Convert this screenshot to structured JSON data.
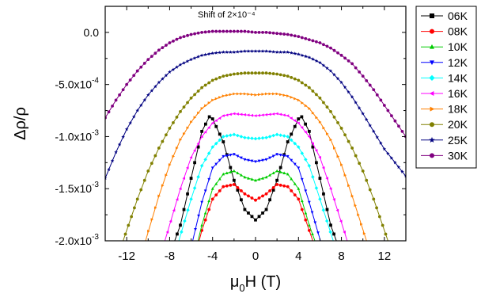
{
  "chart_data": {
    "type": "line",
    "annotation": "Shift of 2×10⁻⁴",
    "xlabel": {
      "base": "μ",
      "sub": "0",
      "rest": "H (T)"
    },
    "ylabel": "Δρ/ρ",
    "xlim": [
      -14,
      14
    ],
    "ylim": [
      -0.002,
      0.00025
    ],
    "x_ticks": [
      -12,
      -8,
      -4,
      0,
      4,
      8,
      12
    ],
    "x_tick_labels": [
      "-12",
      "-8",
      "-4",
      "0",
      "4",
      "8",
      "12"
    ],
    "y_ticks": [
      0,
      -0.0005,
      -0.001,
      -0.0015,
      -0.002
    ],
    "y_tick_labels": [
      {
        "mant": "0.0",
        "exp": ""
      },
      {
        "mant": "-5.0x10",
        "exp": "-4"
      },
      {
        "mant": "-1.0x10",
        "exp": "-3"
      },
      {
        "mant": "-1.5x10",
        "exp": "-3"
      },
      {
        "mant": "-2.0x10",
        "exp": "-3"
      }
    ],
    "legend_position": "outside-right",
    "series": [
      {
        "name": "06K",
        "color": "#000000",
        "marker": "square",
        "points": [
          [
            -7.6,
            -0.00202
          ],
          [
            -7,
            -0.00185
          ],
          [
            -6,
            -0.0014
          ],
          [
            -5,
            -0.00095
          ],
          [
            -4.3,
            -0.00081
          ],
          [
            -4,
            -0.00083
          ],
          [
            -3,
            -0.00105
          ],
          [
            -2,
            -0.00142
          ],
          [
            -1,
            -0.0017
          ],
          [
            0,
            -0.0018
          ],
          [
            1,
            -0.0017
          ],
          [
            2,
            -0.00142
          ],
          [
            3,
            -0.00105
          ],
          [
            4,
            -0.00083
          ],
          [
            4.3,
            -0.00081
          ],
          [
            5,
            -0.00095
          ],
          [
            6,
            -0.0014
          ],
          [
            7,
            -0.00185
          ],
          [
            7.6,
            -0.00202
          ]
        ]
      },
      {
        "name": "08K",
        "color": "#ff0000",
        "marker": "circle",
        "points": [
          [
            -5.3,
            -0.00202
          ],
          [
            -5,
            -0.0019
          ],
          [
            -4,
            -0.0016
          ],
          [
            -3,
            -0.00148
          ],
          [
            -2,
            -0.00146
          ],
          [
            -1,
            -0.00155
          ],
          [
            0,
            -0.00161
          ],
          [
            1,
            -0.00155
          ],
          [
            2,
            -0.00146
          ],
          [
            3,
            -0.00148
          ],
          [
            4,
            -0.0016
          ],
          [
            5,
            -0.0019
          ],
          [
            5.4,
            -0.00202
          ]
        ]
      },
      {
        "name": "10K",
        "color": "#00cc00",
        "marker": "triangle-up",
        "points": [
          [
            -5.4,
            -0.00202
          ],
          [
            -5,
            -0.00185
          ],
          [
            -4,
            -0.0015
          ],
          [
            -3,
            -0.00136
          ],
          [
            -2,
            -0.00133
          ],
          [
            -1,
            -0.00139
          ],
          [
            0,
            -0.00142
          ],
          [
            1,
            -0.00139
          ],
          [
            2,
            -0.00133
          ],
          [
            3,
            -0.00136
          ],
          [
            4,
            -0.0015
          ],
          [
            5,
            -0.00185
          ],
          [
            5.6,
            -0.00202
          ]
        ]
      },
      {
        "name": "12K",
        "color": "#0000ff",
        "marker": "triangle-down",
        "points": [
          [
            -5.9,
            -0.00202
          ],
          [
            -5,
            -0.00163
          ],
          [
            -4,
            -0.0013
          ],
          [
            -3,
            -0.00119
          ],
          [
            -2,
            -0.00117
          ],
          [
            -1,
            -0.00122
          ],
          [
            0,
            -0.00124
          ],
          [
            1,
            -0.00122
          ],
          [
            2,
            -0.00117
          ],
          [
            3,
            -0.00119
          ],
          [
            4,
            -0.0013
          ],
          [
            5,
            -0.00163
          ],
          [
            6.1,
            -0.00202
          ]
        ]
      },
      {
        "name": "14K",
        "color": "#00ffff",
        "marker": "diamond",
        "points": [
          [
            -7.2,
            -0.00202
          ],
          [
            -6,
            -0.0016
          ],
          [
            -5,
            -0.00128
          ],
          [
            -4,
            -0.0011
          ],
          [
            -3,
            -0.001
          ],
          [
            -2,
            -0.00098
          ],
          [
            -1,
            -0.00101
          ],
          [
            0,
            -0.00102
          ],
          [
            1,
            -0.00101
          ],
          [
            2,
            -0.00098
          ],
          [
            3,
            -0.001
          ],
          [
            4,
            -0.0011
          ],
          [
            5,
            -0.00128
          ],
          [
            6,
            -0.0016
          ],
          [
            7.3,
            -0.00202
          ]
        ]
      },
      {
        "name": "16K",
        "color": "#ff00ff",
        "marker": "triangle-left",
        "points": [
          [
            -8.5,
            -0.00202
          ],
          [
            -7,
            -0.0015
          ],
          [
            -6,
            -0.0012
          ],
          [
            -5,
            -0.001
          ],
          [
            -4,
            -0.00087
          ],
          [
            -3,
            -0.0008
          ],
          [
            -2,
            -0.00078
          ],
          [
            -1,
            -0.00079
          ],
          [
            0,
            -0.0008
          ],
          [
            1,
            -0.00079
          ],
          [
            2,
            -0.00078
          ],
          [
            3,
            -0.0008
          ],
          [
            4,
            -0.00087
          ],
          [
            5,
            -0.001
          ],
          [
            6,
            -0.0012
          ],
          [
            7,
            -0.0015
          ],
          [
            8.6,
            -0.00202
          ]
        ]
      },
      {
        "name": "18K",
        "color": "#ff8000",
        "marker": "triangle-right",
        "points": [
          [
            -10.3,
            -0.00202
          ],
          [
            -9,
            -0.00157
          ],
          [
            -8,
            -0.00127
          ],
          [
            -7,
            -0.00103
          ],
          [
            -6,
            -0.00086
          ],
          [
            -5,
            -0.00073
          ],
          [
            -4,
            -0.00065
          ],
          [
            -3,
            -0.00061
          ],
          [
            -2,
            -0.00059
          ],
          [
            -1,
            -0.00059
          ],
          [
            0,
            -0.0006
          ],
          [
            1,
            -0.00059
          ],
          [
            2,
            -0.00059
          ],
          [
            3,
            -0.00061
          ],
          [
            4,
            -0.00065
          ],
          [
            5,
            -0.00073
          ],
          [
            6,
            -0.00086
          ],
          [
            7,
            -0.00103
          ],
          [
            8,
            -0.00127
          ],
          [
            9,
            -0.00157
          ],
          [
            10.4,
            -0.00202
          ]
        ]
      },
      {
        "name": "20K",
        "color": "#808000",
        "marker": "circle",
        "points": [
          [
            -12.4,
            -0.00202
          ],
          [
            -11,
            -0.0016
          ],
          [
            -10,
            -0.00133
          ],
          [
            -9,
            -0.00111
          ],
          [
            -8,
            -0.00092
          ],
          [
            -7,
            -0.00076
          ],
          [
            -6,
            -0.00063
          ],
          [
            -5,
            -0.00053
          ],
          [
            -4,
            -0.00046
          ],
          [
            -3,
            -0.00042
          ],
          [
            -2,
            -0.0004
          ],
          [
            -1,
            -0.00039
          ],
          [
            0,
            -0.00039
          ],
          [
            1,
            -0.00039
          ],
          [
            2,
            -0.0004
          ],
          [
            3,
            -0.00042
          ],
          [
            4,
            -0.00046
          ],
          [
            5,
            -0.00053
          ],
          [
            6,
            -0.00063
          ],
          [
            7,
            -0.00076
          ],
          [
            8,
            -0.00092
          ],
          [
            9,
            -0.00111
          ],
          [
            10,
            -0.00133
          ],
          [
            11,
            -0.0016
          ],
          [
            12.4,
            -0.00202
          ]
        ]
      },
      {
        "name": "25K",
        "color": "#000080",
        "marker": "star",
        "points": [
          [
            -14,
            -0.0014
          ],
          [
            -13,
            -0.00115
          ],
          [
            -12,
            -0.00093
          ],
          [
            -11,
            -0.00075
          ],
          [
            -10,
            -0.0006
          ],
          [
            -9,
            -0.00048
          ],
          [
            -8,
            -0.00038
          ],
          [
            -7,
            -0.00031
          ],
          [
            -6,
            -0.00026
          ],
          [
            -5,
            -0.00022
          ],
          [
            -4,
            -0.0002
          ],
          [
            -3,
            -0.00019
          ],
          [
            -2,
            -0.00019
          ],
          [
            -1,
            -0.00018
          ],
          [
            0,
            -0.00018
          ],
          [
            1,
            -0.00018
          ],
          [
            2,
            -0.00019
          ],
          [
            3,
            -0.00019
          ],
          [
            4,
            -0.00021
          ],
          [
            5,
            -0.00024
          ],
          [
            6,
            -0.00029
          ],
          [
            7,
            -0.00037
          ],
          [
            8,
            -0.00048
          ],
          [
            9,
            -0.00062
          ],
          [
            10,
            -0.00078
          ],
          [
            11,
            -0.00095
          ],
          [
            12,
            -0.00112
          ],
          [
            13,
            -0.00125
          ],
          [
            14,
            -0.00138
          ]
        ]
      },
      {
        "name": "30K",
        "color": "#800080",
        "marker": "circle",
        "points": [
          [
            -14,
            -0.00082
          ],
          [
            -13,
            -0.00065
          ],
          [
            -12,
            -0.0005
          ],
          [
            -11,
            -0.00037
          ],
          [
            -10,
            -0.00026
          ],
          [
            -9,
            -0.00017
          ],
          [
            -8,
            -0.0001
          ],
          [
            -7,
            -5e-05
          ],
          [
            -6,
            -2e-05
          ],
          [
            -5,
            0.0
          ],
          [
            -4,
            1e-05
          ],
          [
            -3,
            1e-05
          ],
          [
            -2,
            1e-05
          ],
          [
            -1,
            1e-05
          ],
          [
            0,
            0.0
          ],
          [
            1,
            0.0
          ],
          [
            2,
            -1e-05
          ],
          [
            3,
            -2e-05
          ],
          [
            4,
            -4e-05
          ],
          [
            5,
            -7e-05
          ],
          [
            6,
            -0.0001
          ],
          [
            7,
            -0.00015
          ],
          [
            8,
            -0.00022
          ],
          [
            9,
            -0.0003
          ],
          [
            10,
            -0.00042
          ],
          [
            11,
            -0.00055
          ],
          [
            12,
            -0.0007
          ],
          [
            13,
            -0.00085
          ],
          [
            14,
            -0.001
          ]
        ]
      }
    ]
  }
}
